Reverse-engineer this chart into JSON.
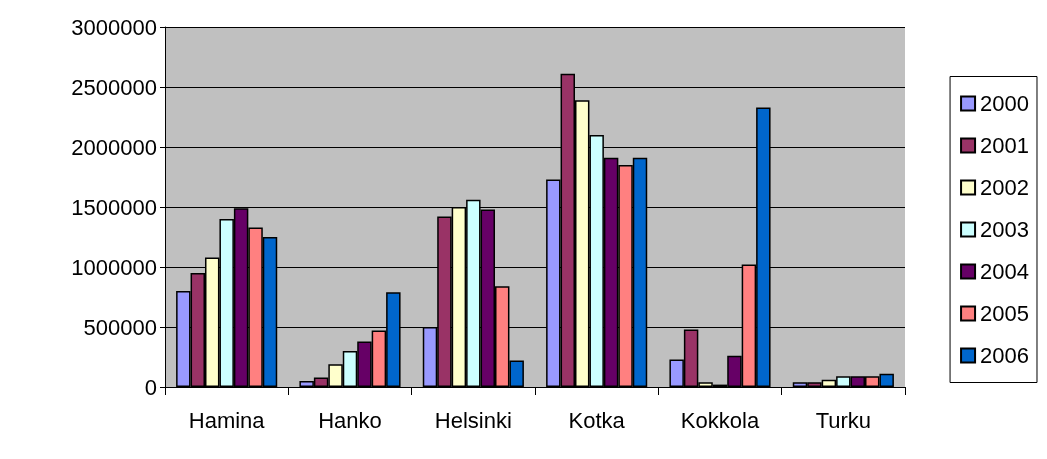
{
  "chart_data": {
    "type": "bar",
    "categories": [
      "Hamina",
      "Hanko",
      "Helsinki",
      "Kotka",
      "Kokkola",
      "Turku"
    ],
    "series": [
      {
        "name": "2000",
        "color": "#9999ff",
        "values": [
          800000,
          50000,
          500000,
          1730000,
          230000,
          40000
        ]
      },
      {
        "name": "2001",
        "color": "#993366",
        "values": [
          950000,
          80000,
          1420000,
          2610000,
          480000,
          40000
        ]
      },
      {
        "name": "2002",
        "color": "#ffffcc",
        "values": [
          1080000,
          190000,
          1500000,
          2390000,
          40000,
          60000
        ]
      },
      {
        "name": "2003",
        "color": "#ccffff",
        "values": [
          1400000,
          300000,
          1560000,
          2100000,
          20000,
          90000
        ]
      },
      {
        "name": "2004",
        "color": "#660066",
        "values": [
          1490000,
          380000,
          1480000,
          1910000,
          260000,
          90000
        ]
      },
      {
        "name": "2005",
        "color": "#ff8080",
        "values": [
          1330000,
          470000,
          840000,
          1850000,
          1020000,
          90000
        ]
      },
      {
        "name": "2006",
        "color": "#0066cc",
        "values": [
          1250000,
          790000,
          220000,
          1910000,
          2330000,
          110000
        ]
      }
    ],
    "ylim": [
      0,
      3000000
    ],
    "yticks": [
      0,
      500000,
      1000000,
      1500000,
      2000000,
      2500000,
      3000000
    ],
    "grid": "y",
    "legend": "right"
  }
}
